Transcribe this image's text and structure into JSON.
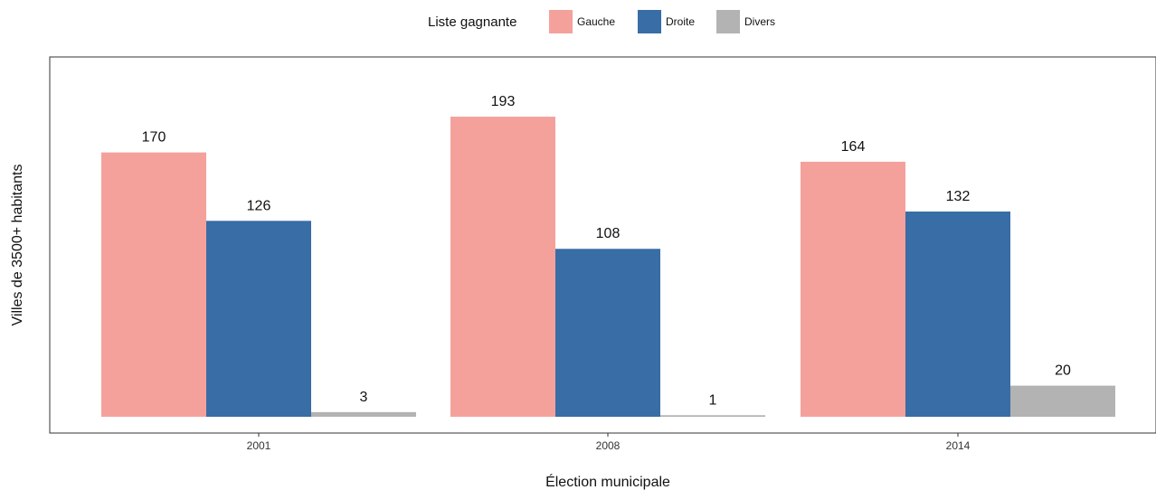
{
  "chart_data": {
    "type": "bar",
    "categories": [
      "2001",
      "2008",
      "2014"
    ],
    "series": [
      {
        "name": "Gauche",
        "values": [
          170,
          193,
          164
        ],
        "color": "#f4a19c"
      },
      {
        "name": "Droite",
        "values": [
          126,
          108,
          132
        ],
        "color": "#386da6"
      },
      {
        "name": "Divers",
        "values": [
          3,
          1,
          20
        ],
        "color": "#b3b3b3"
      }
    ],
    "xlabel": "Élection municipale",
    "ylabel": "Villes de 3500+ habitants",
    "ylim": [
      0,
      205
    ],
    "legend_title": "Liste gagnante",
    "legend_position": "top",
    "grid": false,
    "panel_border": true,
    "data_labels": true
  }
}
